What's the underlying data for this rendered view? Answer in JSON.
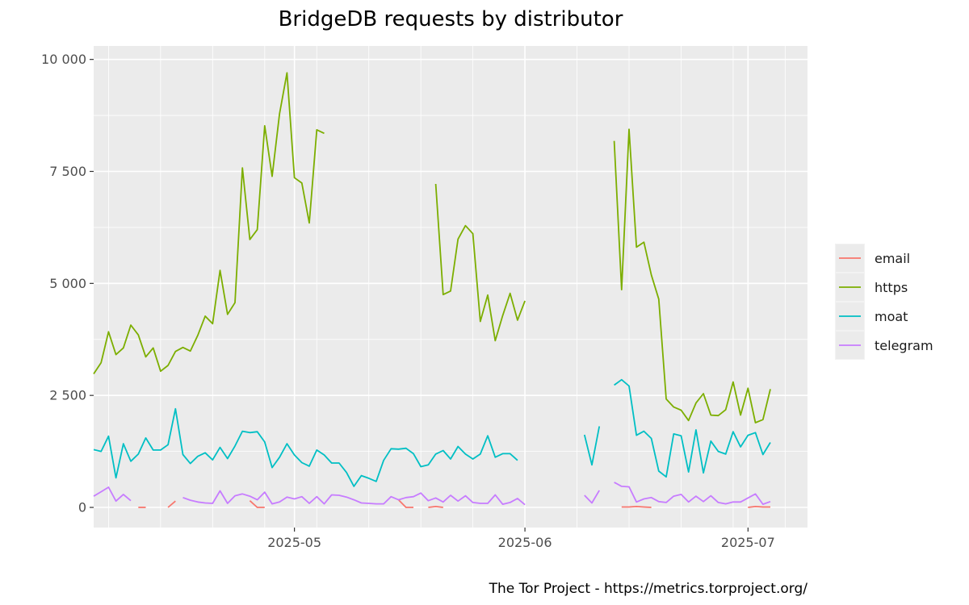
{
  "chart_data": {
    "type": "line",
    "title": "BridgeDB requests by distributor",
    "caption": "The Tor Project - https://metrics.torproject.org/",
    "xlabel": "",
    "ylabel": "",
    "xlim": [
      "2025-04-04",
      "2025-07-09"
    ],
    "ylim": [
      -450,
      10300
    ],
    "yticks": [
      0,
      2500,
      5000,
      7500,
      10000
    ],
    "ytick_labels": [
      "0",
      "2 500",
      "5 000",
      "7 500",
      "10 000"
    ],
    "xticks": [
      "2025-05-01",
      "2025-06-01",
      "2025-07-01"
    ],
    "xtick_labels": [
      "2025-05",
      "2025-06",
      "2025-07"
    ],
    "grid": true,
    "legend_position": "right",
    "series": [
      {
        "name": "email",
        "color": "#F8766D",
        "segments": [
          {
            "start": "2025-04-10",
            "values": [
              0,
              0
            ]
          },
          {
            "start": "2025-04-14",
            "values": [
              0,
              140
            ]
          },
          {
            "start": "2025-04-25",
            "values": [
              150,
              0,
              0
            ]
          },
          {
            "start": "2025-05-15",
            "values": [
              170,
              0,
              0
            ]
          },
          {
            "start": "2025-05-19",
            "values": [
              0,
              20,
              0
            ]
          },
          {
            "start": "2025-06-14",
            "values": [
              10,
              10,
              20,
              10,
              0
            ]
          },
          {
            "start": "2025-07-01",
            "values": [
              0,
              20,
              10,
              10
            ]
          }
        ]
      },
      {
        "name": "https",
        "color": "#7CAE00",
        "segments": [
          {
            "start": "2025-04-04",
            "values": [
              2980,
              3230,
              3920,
              3410,
              3560,
              4070,
              3850,
              3360,
              3560,
              3040,
              3170,
              3480,
              3570,
              3490,
              3840,
              4270,
              4100,
              5290,
              4310,
              4570,
              7580,
              5980,
              6200,
              8520,
              7390,
              8790,
              9700,
              7360,
              7240,
              6350,
              8430,
              8350
            ]
          },
          {
            "start": "2025-05-20",
            "values": [
              7220,
              4750,
              4830,
              5990,
              6290,
              6110,
              4150,
              4740,
              3720,
              4280,
              4780,
              4180,
              4610
            ]
          },
          {
            "start": "2025-06-13",
            "values": [
              8180,
              4860,
              8440,
              5810,
              5920,
              5190,
              4650,
              2420,
              2240,
              2170,
              1940,
              2330,
              2540,
              2060,
              2050,
              2180,
              2800,
              2060,
              2660,
              1890,
              1960,
              2640
            ]
          }
        ]
      },
      {
        "name": "moat",
        "color": "#00BFC4",
        "segments": [
          {
            "start": "2025-04-04",
            "values": [
              1290,
              1250,
              1590,
              660,
              1420,
              1030,
              1190,
              1550,
              1280,
              1280,
              1400,
              2200,
              1180,
              980,
              1140,
              1220,
              1060,
              1340,
              1090,
              1370,
              1700,
              1670,
              1690,
              1460,
              890,
              1120,
              1420,
              1170,
              1000,
              920,
              1280,
              1170,
              990,
              990,
              780,
              470,
              710,
              650,
              580,
              1050,
              1310,
              1300,
              1320,
              1200,
              910,
              950,
              1190,
              1270,
              1080,
              1360,
              1190,
              1080,
              1190,
              1600,
              1120,
              1200,
              1200,
              1050
            ]
          },
          {
            "start": "2025-06-09",
            "values": [
              1620,
              950,
              1810
            ]
          },
          {
            "start": "2025-06-13",
            "values": [
              2730,
              2850,
              2710,
              1610,
              1700,
              1540,
              810,
              680,
              1640,
              1600,
              790,
              1730,
              770,
              1480,
              1250,
              1190,
              1690,
              1350,
              1610,
              1670,
              1180,
              1450
            ]
          }
        ]
      },
      {
        "name": "telegram",
        "color": "#C77CFF",
        "segments": [
          {
            "start": "2025-04-04",
            "values": [
              250,
              350,
              450,
              140,
              290,
              150
            ]
          },
          {
            "start": "2025-04-16",
            "values": [
              220,
              160,
              120,
              100,
              90,
              370,
              90,
              260,
              300,
              250,
              170,
              340,
              80,
              120,
              230,
              190,
              240,
              90,
              240,
              80,
              280,
              270,
              230,
              170,
              100,
              90,
              80,
              80,
              240,
              170,
              220,
              240,
              320,
              150,
              210,
              120,
              270,
              140,
              260,
              110,
              90,
              90,
              280,
              70,
              110,
              200,
              60
            ]
          },
          {
            "start": "2025-06-09",
            "values": [
              270,
              100,
              380
            ]
          },
          {
            "start": "2025-06-13",
            "values": [
              560,
              470,
              460,
              120,
              190,
              220,
              130,
              110,
              250,
              290,
              120,
              250,
              130,
              260,
              110,
              80,
              120,
              120,
              210,
              300,
              70,
              130
            ]
          }
        ]
      }
    ]
  }
}
